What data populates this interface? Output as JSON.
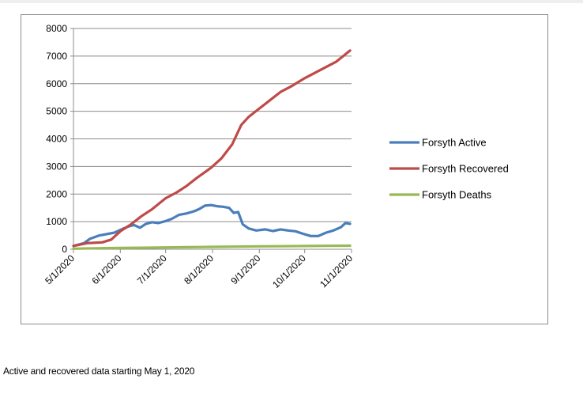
{
  "caption": "Active and recovered data starting May 1, 2020",
  "chart_data": {
    "type": "line",
    "title": "",
    "xlabel": "",
    "ylabel": "",
    "ylim": [
      0,
      8000
    ],
    "yticks": [
      0,
      1000,
      2000,
      3000,
      4000,
      5000,
      6000,
      7000,
      8000
    ],
    "xlim": [
      "2020-05-01",
      "2020-11-01"
    ],
    "xticks": [
      {
        "date": "2020-05-01",
        "label": "5/1/2020"
      },
      {
        "date": "2020-06-01",
        "label": "6/1/2020"
      },
      {
        "date": "2020-07-01",
        "label": "7/1/2020"
      },
      {
        "date": "2020-08-01",
        "label": "8/1/2020"
      },
      {
        "date": "2020-09-01",
        "label": "9/1/2020"
      },
      {
        "date": "2020-10-01",
        "label": "10/1/2020"
      },
      {
        "date": "2020-11-01",
        "label": "11/1/2020"
      }
    ],
    "grid": "horizontal",
    "legend_position": "right",
    "series": [
      {
        "name": "Forsyth Active",
        "color": "#4a7ebb",
        "points": [
          [
            "2020-05-01",
            120
          ],
          [
            "2020-05-08",
            220
          ],
          [
            "2020-05-12",
            380
          ],
          [
            "2020-05-18",
            500
          ],
          [
            "2020-05-24",
            560
          ],
          [
            "2020-05-28",
            600
          ],
          [
            "2020-06-01",
            700
          ],
          [
            "2020-06-06",
            820
          ],
          [
            "2020-06-10",
            880
          ],
          [
            "2020-06-14",
            780
          ],
          [
            "2020-06-18",
            920
          ],
          [
            "2020-06-22",
            980
          ],
          [
            "2020-06-26",
            950
          ],
          [
            "2020-07-01",
            1020
          ],
          [
            "2020-07-05",
            1100
          ],
          [
            "2020-07-10",
            1250
          ],
          [
            "2020-07-15",
            1300
          ],
          [
            "2020-07-20",
            1380
          ],
          [
            "2020-07-23",
            1450
          ],
          [
            "2020-07-27",
            1580
          ],
          [
            "2020-07-31",
            1600
          ],
          [
            "2020-08-04",
            1560
          ],
          [
            "2020-08-08",
            1540
          ],
          [
            "2020-08-12",
            1500
          ],
          [
            "2020-08-15",
            1320
          ],
          [
            "2020-08-18",
            1350
          ],
          [
            "2020-08-21",
            900
          ],
          [
            "2020-08-25",
            750
          ],
          [
            "2020-08-30",
            680
          ],
          [
            "2020-09-05",
            720
          ],
          [
            "2020-09-10",
            660
          ],
          [
            "2020-09-15",
            720
          ],
          [
            "2020-09-20",
            680
          ],
          [
            "2020-09-25",
            650
          ],
          [
            "2020-09-30",
            560
          ],
          [
            "2020-10-05",
            480
          ],
          [
            "2020-10-10",
            480
          ],
          [
            "2020-10-15",
            600
          ],
          [
            "2020-10-20",
            680
          ],
          [
            "2020-10-25",
            800
          ],
          [
            "2020-10-28",
            950
          ],
          [
            "2020-10-31",
            920
          ]
        ]
      },
      {
        "name": "Forsyth Recovered",
        "color": "#be4b48",
        "points": [
          [
            "2020-05-01",
            120
          ],
          [
            "2020-05-10",
            220
          ],
          [
            "2020-05-20",
            250
          ],
          [
            "2020-05-26",
            350
          ],
          [
            "2020-06-01",
            650
          ],
          [
            "2020-06-08",
            900
          ],
          [
            "2020-06-15",
            1200
          ],
          [
            "2020-06-22",
            1450
          ],
          [
            "2020-07-01",
            1850
          ],
          [
            "2020-07-08",
            2050
          ],
          [
            "2020-07-15",
            2300
          ],
          [
            "2020-07-22",
            2600
          ],
          [
            "2020-07-31",
            2950
          ],
          [
            "2020-08-07",
            3300
          ],
          [
            "2020-08-14",
            3800
          ],
          [
            "2020-08-20",
            4500
          ],
          [
            "2020-08-25",
            4800
          ],
          [
            "2020-09-01",
            5100
          ],
          [
            "2020-09-08",
            5400
          ],
          [
            "2020-09-15",
            5700
          ],
          [
            "2020-09-22",
            5900
          ],
          [
            "2020-10-01",
            6200
          ],
          [
            "2020-10-08",
            6400
          ],
          [
            "2020-10-15",
            6600
          ],
          [
            "2020-10-22",
            6800
          ],
          [
            "2020-10-31",
            7200
          ]
        ]
      },
      {
        "name": "Forsyth Deaths",
        "color": "#98b954",
        "points": [
          [
            "2020-05-01",
            20
          ],
          [
            "2020-05-15",
            35
          ],
          [
            "2020-06-01",
            45
          ],
          [
            "2020-06-15",
            55
          ],
          [
            "2020-07-01",
            65
          ],
          [
            "2020-07-15",
            75
          ],
          [
            "2020-08-01",
            85
          ],
          [
            "2020-08-15",
            95
          ],
          [
            "2020-09-01",
            105
          ],
          [
            "2020-09-15",
            110
          ],
          [
            "2020-10-01",
            118
          ],
          [
            "2020-10-15",
            124
          ],
          [
            "2020-10-31",
            130
          ]
        ]
      }
    ]
  }
}
